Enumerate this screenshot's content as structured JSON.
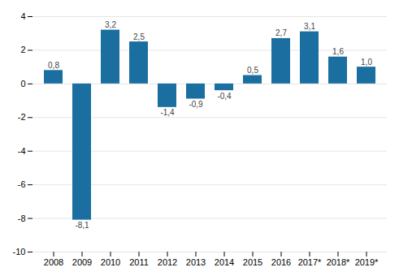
{
  "chart_data": {
    "type": "bar",
    "categories": [
      "2008",
      "2009",
      "2010",
      "2011",
      "2012",
      "2013",
      "2014",
      "2015",
      "2016",
      "2017*",
      "2018*",
      "2019*"
    ],
    "values": [
      0.8,
      -8.1,
      3.2,
      2.5,
      -1.4,
      -0.9,
      -0.4,
      0.5,
      2.7,
      3.1,
      1.6,
      1.0
    ],
    "value_labels": [
      "0,8",
      "-8,1",
      "3,2",
      "2,5",
      "-1,4",
      "-0,9",
      "-0,4",
      "0,5",
      "2,7",
      "3,1",
      "1,6",
      "1,0"
    ],
    "data_labels": true,
    "color": "#1a6fa0",
    "ylim": [
      -10,
      4
    ],
    "yticks": [
      -10,
      -8,
      -6,
      -4,
      -2,
      0,
      2,
      4
    ],
    "grid": true
  }
}
